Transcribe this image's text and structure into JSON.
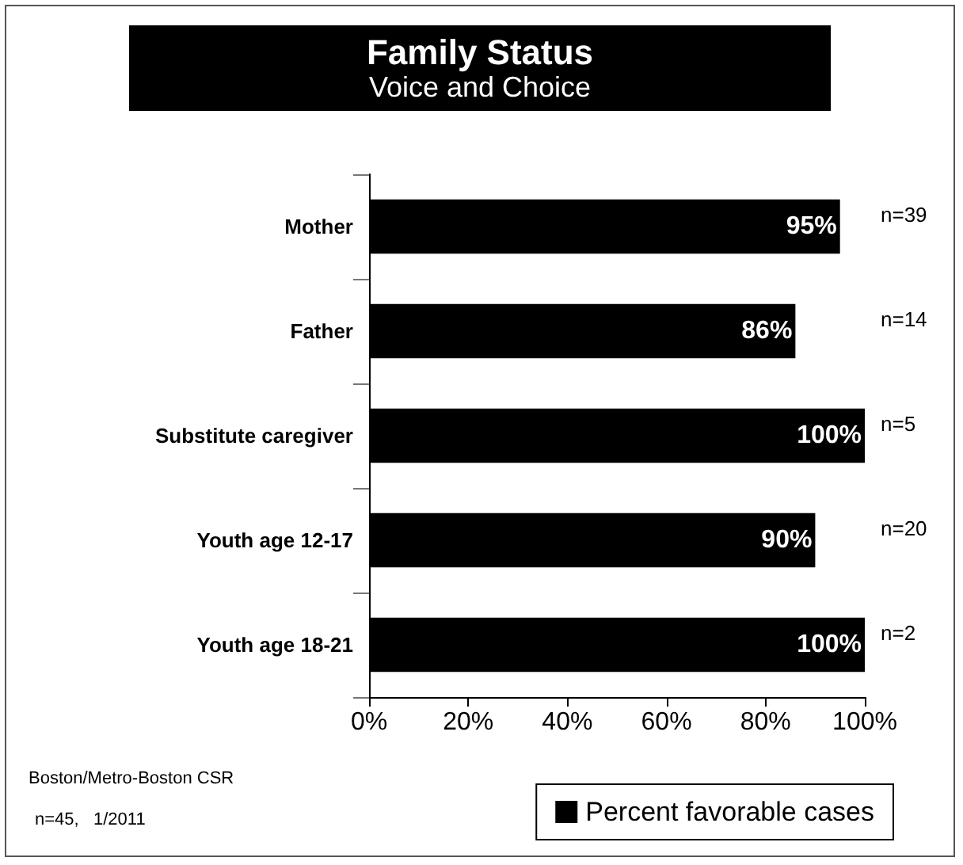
{
  "chart_data": {
    "type": "bar",
    "title": "Family Status",
    "subtitle": "Voice and Choice",
    "orientation": "horizontal",
    "categories": [
      "Mother",
      "Father",
      "Substitute caregiver",
      "Youth age 12-17",
      "Youth age 18-21"
    ],
    "series": [
      {
        "name": "Percent favorable cases",
        "color": "#000000",
        "values": [
          95,
          86,
          100,
          90,
          100
        ],
        "value_labels": [
          "95%",
          "86%",
          "100%",
          "90%",
          "100%"
        ]
      }
    ],
    "xlim": [
      0,
      100
    ],
    "xticks": [
      {
        "value": 0,
        "label": "0%"
      },
      {
        "value": 20,
        "label": "20%"
      },
      {
        "value": 40,
        "label": "40%"
      },
      {
        "value": 60,
        "label": "60%"
      },
      {
        "value": 80,
        "label": "80%"
      },
      {
        "value": 100,
        "label": "100%"
      }
    ],
    "grid": false,
    "legend": "bottom right",
    "annotations": [
      "n=39",
      "n=14",
      "n=5",
      "n=20",
      "n=2",
      "Boston/Metro-Boston CSR",
      "n=45,   1/2011"
    ]
  }
}
